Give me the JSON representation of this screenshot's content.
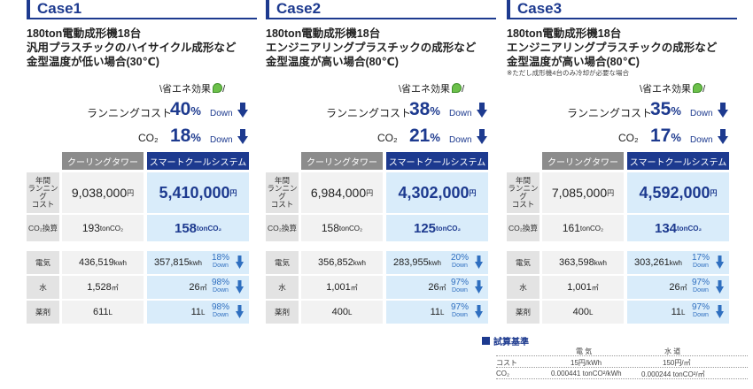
{
  "colors": {
    "brand": "#1d3a8f",
    "smart_bg": "#d9ecfa",
    "tower_bg": "#8c8c8c",
    "leaf": "#6cc04a"
  },
  "cases": [
    {
      "title": "Case1",
      "desc": [
        "180ton電動成形機18台",
        "汎用プラスチックのハイサイクル成形など",
        "金型温度が低い場合(30℃)"
      ],
      "note": "",
      "eco": "\\省エネ効果",
      "eco_end": "/",
      "running_label": "ランニングコスト",
      "running_pct": "40",
      "co2_label": "CO₂",
      "co2_pct": "18",
      "pct_sym": "%",
      "down": "Down",
      "col_tower": "クーリングタワー",
      "col_smart": "スマートクールシステム",
      "row_annual": [
        "年間",
        "ランニング",
        "コスト"
      ],
      "annual_tower": "9,038,000",
      "annual_smart": "5,410,000",
      "yen": "円",
      "row_co2": "CO₂換算",
      "co2_tower": "193",
      "co2_smart": "158",
      "co2_unit": "tonCO₂",
      "row_elec": "電気",
      "elec_tower": "436,519",
      "elec_smart": "357,815",
      "elec_unit": "kwh",
      "elec_red": "18%",
      "row_water": "水",
      "water_tower": "1,528",
      "water_smart": "26",
      "water_unit": "㎥",
      "water_red": "98%",
      "row_chem": "薬剤",
      "chem_tower": "611",
      "chem_smart": "11",
      "chem_unit": "L",
      "chem_red": "98%"
    },
    {
      "title": "Case2",
      "desc": [
        "180ton電動成形機18台",
        "エンジニアリングプラスチックの成形など",
        "金型温度が高い場合(80℃)"
      ],
      "note": "",
      "eco": "\\省エネ効果",
      "eco_end": "/",
      "running_label": "ランニングコスト",
      "running_pct": "38",
      "co2_label": "CO₂",
      "co2_pct": "21",
      "pct_sym": "%",
      "down": "Down",
      "col_tower": "クーリングタワー",
      "col_smart": "スマートクールシステム",
      "row_annual": [
        "年間",
        "ランニング",
        "コスト"
      ],
      "annual_tower": "6,984,000",
      "annual_smart": "4,302,000",
      "yen": "円",
      "row_co2": "CO₂換算",
      "co2_tower": "158",
      "co2_smart": "125",
      "co2_unit": "tonCO₂",
      "row_elec": "電気",
      "elec_tower": "356,852",
      "elec_smart": "283,955",
      "elec_unit": "kwh",
      "elec_red": "20%",
      "row_water": "水",
      "water_tower": "1,001",
      "water_smart": "26",
      "water_unit": "㎥",
      "water_red": "97%",
      "row_chem": "薬剤",
      "chem_tower": "400",
      "chem_smart": "11",
      "chem_unit": "L",
      "chem_red": "97%"
    },
    {
      "title": "Case3",
      "desc": [
        "180ton電動成形機18台",
        "エンジニアリングプラスチックの成形など",
        "金型温度が高い場合(80℃)"
      ],
      "note": "※ただし成形機4台のみ冷却が必要な場合",
      "eco": "\\省エネ効果",
      "eco_end": "/",
      "running_label": "ランニングコスト",
      "running_pct": "35",
      "co2_label": "CO₂",
      "co2_pct": "17",
      "pct_sym": "%",
      "down": "Down",
      "col_tower": "クーリングタワー",
      "col_smart": "スマートクールシステム",
      "row_annual": [
        "年間",
        "ランニング",
        "コスト"
      ],
      "annual_tower": "7,085,000",
      "annual_smart": "4,592,000",
      "yen": "円",
      "row_co2": "CO₂換算",
      "co2_tower": "161",
      "co2_smart": "134",
      "co2_unit": "tonCO₂",
      "row_elec": "電気",
      "elec_tower": "363,598",
      "elec_smart": "303,261",
      "elec_unit": "kwh",
      "elec_red": "17%",
      "row_water": "水",
      "water_tower": "1,001",
      "water_smart": "26",
      "water_unit": "㎥",
      "water_red": "97%",
      "row_chem": "薬剤",
      "chem_tower": "400",
      "chem_smart": "11",
      "chem_unit": "L",
      "chem_red": "97%"
    }
  ],
  "calc": {
    "title": "試算基準",
    "col_elec": "電 気",
    "col_water": "水 道",
    "row_cost": "コスト",
    "cost_elec": "15円/kWh",
    "cost_water": "150円/㎥",
    "row_co2": "CO₂",
    "co2_elec": "0.000441 tonCO²/kWh",
    "co2_water": "0.000244 tonCO²/㎥"
  }
}
